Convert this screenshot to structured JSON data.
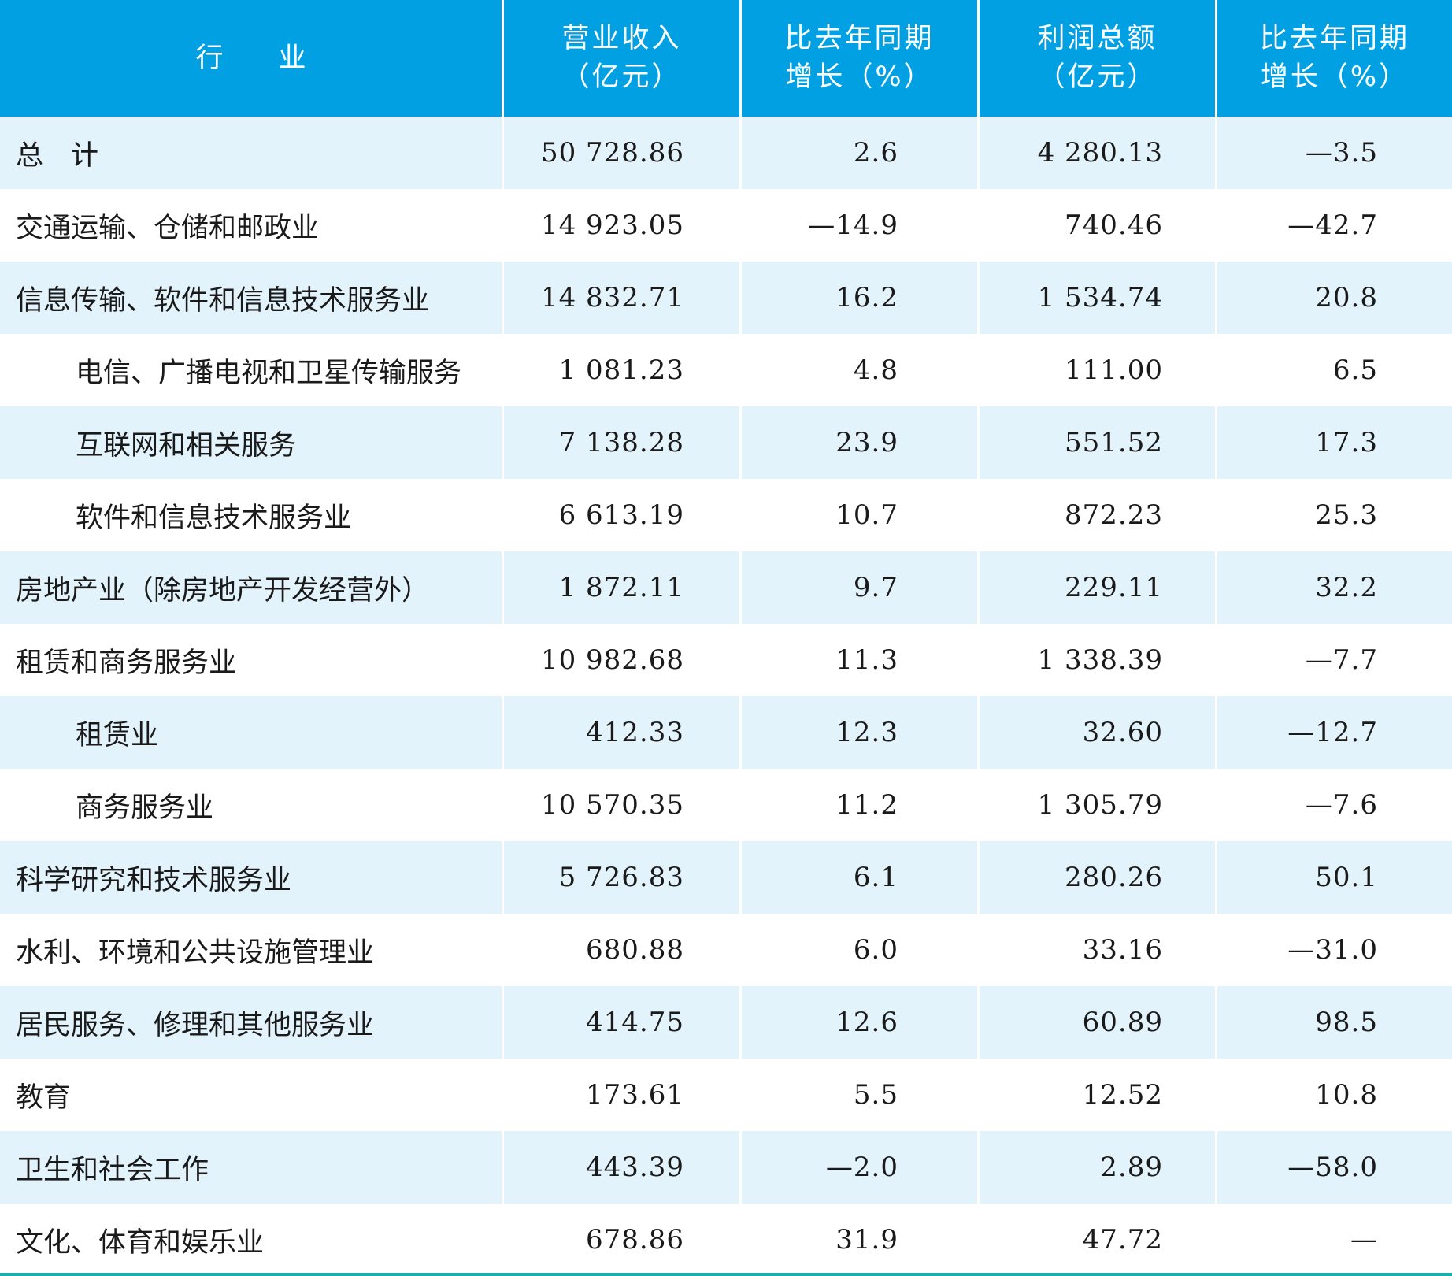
{
  "header": {
    "industry": [
      "行",
      "业"
    ],
    "revenue": [
      "营业收入",
      "（亿元）"
    ],
    "revenue_growth": [
      "比去年同期",
      "增长（%）"
    ],
    "profit": [
      "利润总额",
      "（亿元）"
    ],
    "profit_growth": [
      "比去年同期",
      "增长（%）"
    ]
  },
  "rows": [
    {
      "name": "总　计",
      "revenue": "50 728.86",
      "revenue_growth": "2.6",
      "profit": "4 280.13",
      "profit_growth": "—3.5",
      "indent": false
    },
    {
      "name": "交通运输、仓储和邮政业",
      "revenue": "14 923.05",
      "revenue_growth": "—14.9",
      "profit": "740.46",
      "profit_growth": "—42.7",
      "indent": false
    },
    {
      "name": "信息传输、软件和信息技术服务业",
      "revenue": "14 832.71",
      "revenue_growth": "16.2",
      "profit": "1 534.74",
      "profit_growth": "20.8",
      "indent": false
    },
    {
      "name": "电信、广播电视和卫星传输服务",
      "revenue": "1 081.23",
      "revenue_growth": "4.8",
      "profit": "111.00",
      "profit_growth": "6.5",
      "indent": true
    },
    {
      "name": "互联网和相关服务",
      "revenue": "7 138.28",
      "revenue_growth": "23.9",
      "profit": "551.52",
      "profit_growth": "17.3",
      "indent": true
    },
    {
      "name": "软件和信息技术服务业",
      "revenue": "6 613.19",
      "revenue_growth": "10.7",
      "profit": "872.23",
      "profit_growth": "25.3",
      "indent": true
    },
    {
      "name": "房地产业（除房地产开发经营外）",
      "revenue": "1 872.11",
      "revenue_growth": "9.7",
      "profit": "229.11",
      "profit_growth": "32.2",
      "indent": false
    },
    {
      "name": "租赁和商务服务业",
      "revenue": "10 982.68",
      "revenue_growth": "11.3",
      "profit": "1 338.39",
      "profit_growth": "—7.7",
      "indent": false
    },
    {
      "name": "租赁业",
      "revenue": "412.33",
      "revenue_growth": "12.3",
      "profit": "32.60",
      "profit_growth": "—12.7",
      "indent": true
    },
    {
      "name": "商务服务业",
      "revenue": "10 570.35",
      "revenue_growth": "11.2",
      "profit": "1 305.79",
      "profit_growth": "—7.6",
      "indent": true
    },
    {
      "name": "科学研究和技术服务业",
      "revenue": "5 726.83",
      "revenue_growth": "6.1",
      "profit": "280.26",
      "profit_growth": "50.1",
      "indent": false
    },
    {
      "name": "水利、环境和公共设施管理业",
      "revenue": "680.88",
      "revenue_growth": "6.0",
      "profit": "33.16",
      "profit_growth": "—31.0",
      "indent": false
    },
    {
      "name": "居民服务、修理和其他服务业",
      "revenue": "414.75",
      "revenue_growth": "12.6",
      "profit": "60.89",
      "profit_growth": "98.5",
      "indent": false
    },
    {
      "name": "教育",
      "revenue": "173.61",
      "revenue_growth": "5.5",
      "profit": "12.52",
      "profit_growth": "10.8",
      "indent": false
    },
    {
      "name": "卫生和社会工作",
      "revenue": "443.39",
      "revenue_growth": "—2.0",
      "profit": "2.89",
      "profit_growth": "—58.0",
      "indent": false
    },
    {
      "name": "文化、体育和娱乐业",
      "revenue": "678.86",
      "revenue_growth": "31.9",
      "profit": "47.72",
      "profit_growth": "—",
      "indent": false
    }
  ],
  "colors": {
    "header_bg": "#00a0e3",
    "shade_bg": "#e3f3fc",
    "bottom_rule": "#17b0ad"
  }
}
